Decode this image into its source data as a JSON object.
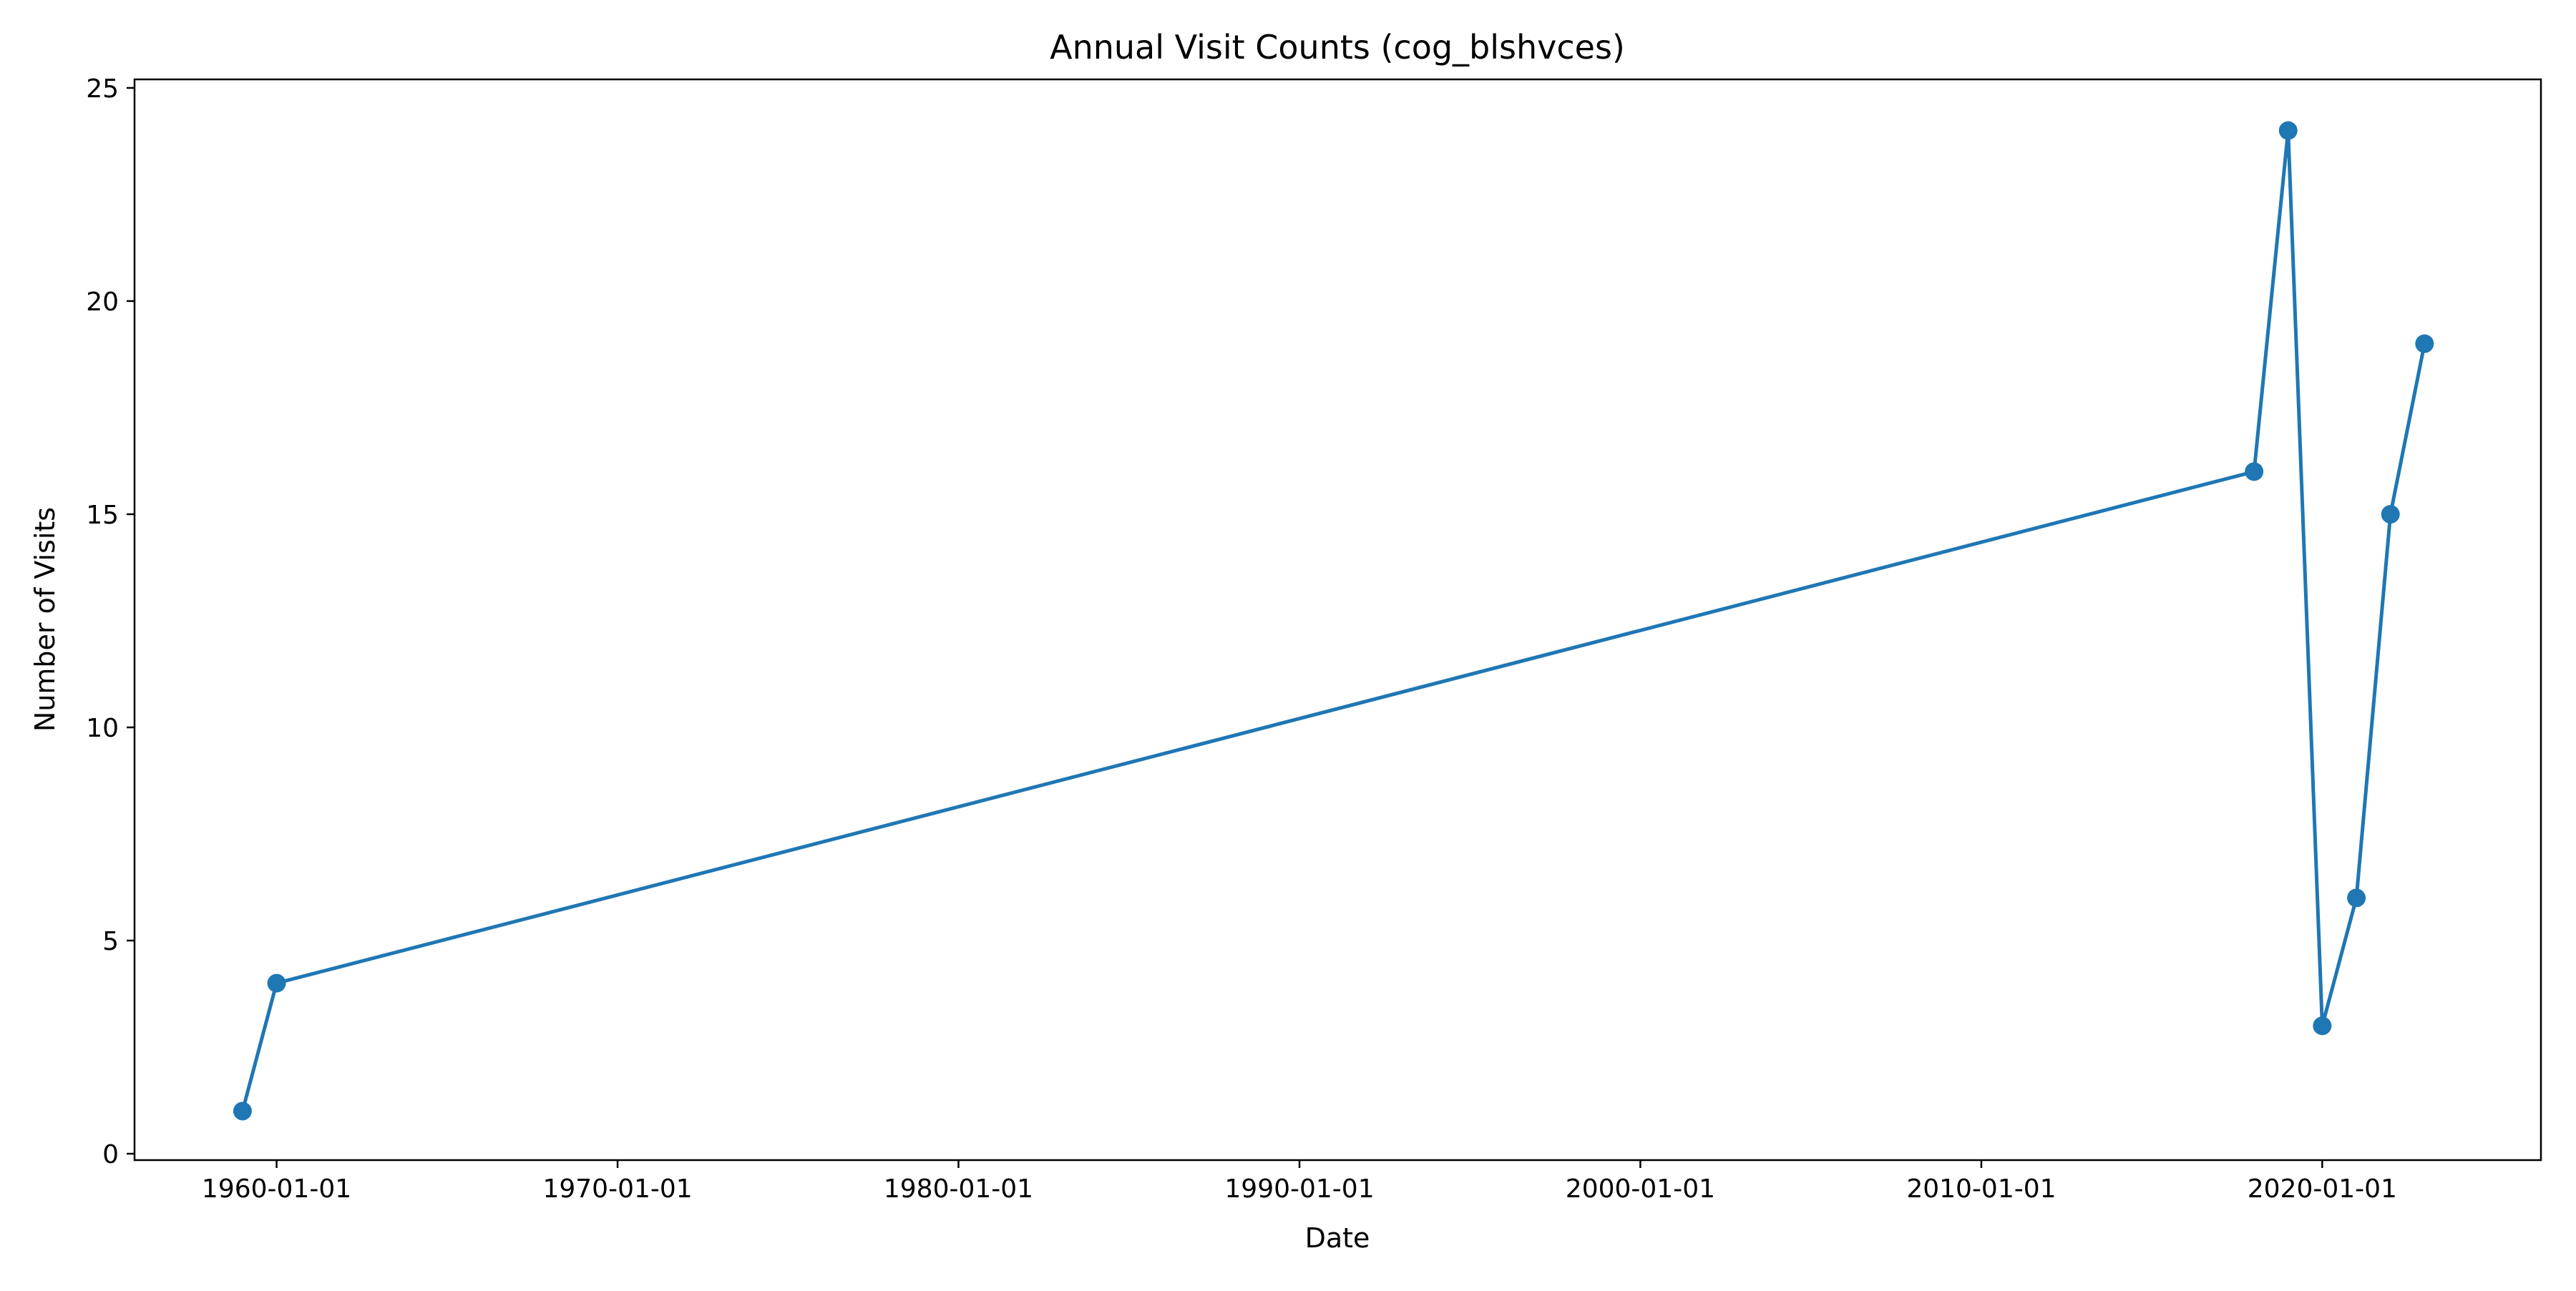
{
  "chart_data": {
    "type": "line",
    "title": "Annual Visit Counts (cog_blshvces)",
    "xlabel": "Date",
    "ylabel": "Number of Visits",
    "x_axis_type": "date",
    "xlim": [
      "1955-11-01",
      "2026-06-01"
    ],
    "ylim": [
      -0.15,
      25.2
    ],
    "x_ticks": [
      "1960-01-01",
      "1970-01-01",
      "1980-01-01",
      "1990-01-01",
      "2000-01-01",
      "2010-01-01",
      "2020-01-01"
    ],
    "y_ticks": [
      0,
      5,
      10,
      15,
      20,
      25
    ],
    "grid": false,
    "legend": "none",
    "series": [
      {
        "color": "#1f77b4",
        "marker": "circle",
        "points": [
          {
            "x": "1959-01-01",
            "y": 1
          },
          {
            "x": "1960-01-01",
            "y": 4
          },
          {
            "x": "2018-01-01",
            "y": 16
          },
          {
            "x": "2019-01-01",
            "y": 24
          },
          {
            "x": "2020-01-01",
            "y": 3
          },
          {
            "x": "2021-01-01",
            "y": 6
          },
          {
            "x": "2022-01-01",
            "y": 15
          },
          {
            "x": "2023-01-01",
            "y": 19
          }
        ]
      }
    ]
  }
}
